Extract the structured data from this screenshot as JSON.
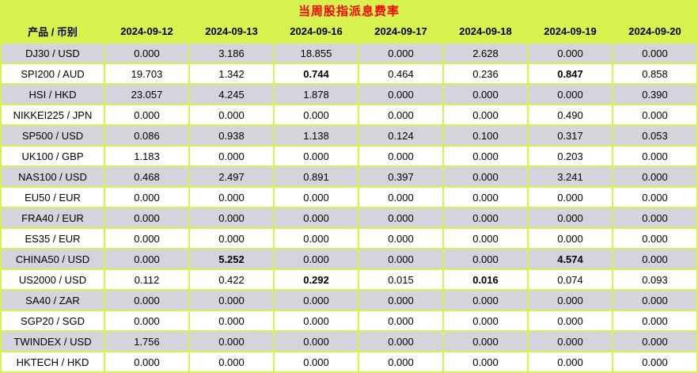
{
  "chart_data": {
    "type": "table",
    "title": "当周股指派息费率",
    "product_header": "产品 / 币别",
    "date_headers": [
      "2024-09-12",
      "2024-09-13",
      "2024-09-16",
      "2024-09-17",
      "2024-09-18",
      "2024-09-19",
      "2024-09-20"
    ],
    "rows": [
      {
        "product": "DJ30 / USD",
        "values": [
          "0.000",
          "3.186",
          "18.855",
          "0.000",
          "2.628",
          "0.000",
          "0.000"
        ],
        "bold_cols": []
      },
      {
        "product": "SPI200 / AUD",
        "values": [
          "19.703",
          "1.342",
          "0.744",
          "0.464",
          "0.236",
          "0.847",
          "0.858"
        ],
        "bold_cols": [
          2,
          5
        ]
      },
      {
        "product": "HSI / HKD",
        "values": [
          "23.057",
          "4.245",
          "1.878",
          "0.000",
          "0.000",
          "0.000",
          "0.390"
        ],
        "bold_cols": []
      },
      {
        "product": "NIKKEI225 / JPN",
        "values": [
          "0.000",
          "0.000",
          "0.000",
          "0.000",
          "0.000",
          "0.490",
          "0.000"
        ],
        "bold_cols": []
      },
      {
        "product": "SP500 / USD",
        "values": [
          "0.086",
          "0.938",
          "1.138",
          "0.124",
          "0.100",
          "0.317",
          "0.053"
        ],
        "bold_cols": []
      },
      {
        "product": "UK100 / GBP",
        "values": [
          "1.183",
          "0.000",
          "0.000",
          "0.000",
          "0.000",
          "0.203",
          "0.000"
        ],
        "bold_cols": []
      },
      {
        "product": "NAS100 / USD",
        "values": [
          "0.468",
          "2.497",
          "0.891",
          "0.397",
          "0.000",
          "3.241",
          "0.000"
        ],
        "bold_cols": []
      },
      {
        "product": "EU50 / EUR",
        "values": [
          "0.000",
          "0.000",
          "0.000",
          "0.000",
          "0.000",
          "0.000",
          "0.000"
        ],
        "bold_cols": []
      },
      {
        "product": "FRA40 / EUR",
        "values": [
          "0.000",
          "0.000",
          "0.000",
          "0.000",
          "0.000",
          "0.000",
          "0.000"
        ],
        "bold_cols": []
      },
      {
        "product": "ES35 / EUR",
        "values": [
          "0.000",
          "0.000",
          "0.000",
          "0.000",
          "0.000",
          "0.000",
          "0.000"
        ],
        "bold_cols": []
      },
      {
        "product": "CHINA50 / USD",
        "values": [
          "0.000",
          "5.252",
          "0.000",
          "0.000",
          "0.000",
          "4.574",
          "0.000"
        ],
        "bold_cols": [
          1,
          5
        ]
      },
      {
        "product": "US2000 / USD",
        "values": [
          "0.112",
          "0.422",
          "0.292",
          "0.015",
          "0.016",
          "0.074",
          "0.093"
        ],
        "bold_cols": [
          2,
          4
        ]
      },
      {
        "product": "SA40 / ZAR",
        "values": [
          "0.000",
          "0.000",
          "0.000",
          "0.000",
          "0.000",
          "0.000",
          "0.000"
        ],
        "bold_cols": []
      },
      {
        "product": "SGP20 / SGD",
        "values": [
          "0.000",
          "0.000",
          "0.000",
          "0.000",
          "0.000",
          "0.000",
          "0.000"
        ],
        "bold_cols": []
      },
      {
        "product": "TWINDEX / USD",
        "values": [
          "1.756",
          "0.000",
          "0.000",
          "0.000",
          "0.000",
          "0.000",
          "0.000"
        ],
        "bold_cols": []
      },
      {
        "product": "HKTECH / HKD",
        "values": [
          "0.000",
          "0.000",
          "0.000",
          "0.000",
          "0.000",
          "0.000",
          "0.000"
        ],
        "bold_cols": []
      }
    ],
    "colors": {
      "background_green": "#d7f24e",
      "title_red": "#ff0000",
      "row_gray": "#d3d4dc",
      "row_white": "#ffffff",
      "text_black": "#000000"
    }
  }
}
